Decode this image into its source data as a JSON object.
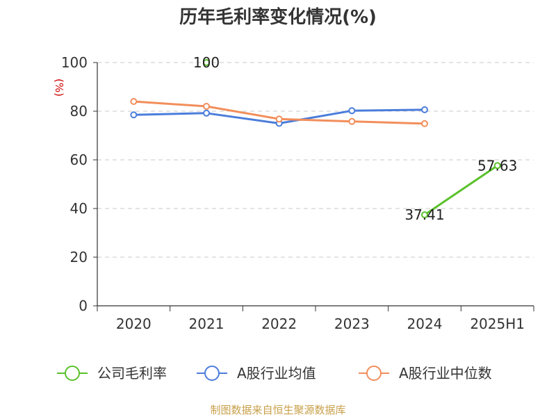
{
  "chart_data": {
    "type": "line",
    "title": "历年毛利率变化情况(%)",
    "ylabel": "(%)",
    "categories": [
      "2020",
      "2021",
      "2022",
      "2023",
      "2024",
      "2025H1"
    ],
    "ylim": [
      0,
      100
    ],
    "yticks": [
      "0",
      "20",
      "40",
      "60",
      "80",
      "100"
    ],
    "grid": true,
    "legend_position": "bottom",
    "series": [
      {
        "name": "公司毛利率",
        "color": "#5ac12b",
        "values": [
          null,
          100,
          null,
          null,
          37.41,
          57.63
        ],
        "labels": [
          null,
          "100",
          null,
          null,
          "37.41",
          "57.63"
        ]
      },
      {
        "name": "A股行业均值",
        "color": "#4b7ddb",
        "values": [
          78.5,
          79.2,
          75.0,
          80.2,
          80.6,
          null
        ]
      },
      {
        "name": "A股行业中位数",
        "color": "#f28e5b",
        "values": [
          84.0,
          82.0,
          76.8,
          75.8,
          74.9,
          null
        ]
      }
    ]
  },
  "source": "制图数据来自恒生聚源数据库"
}
